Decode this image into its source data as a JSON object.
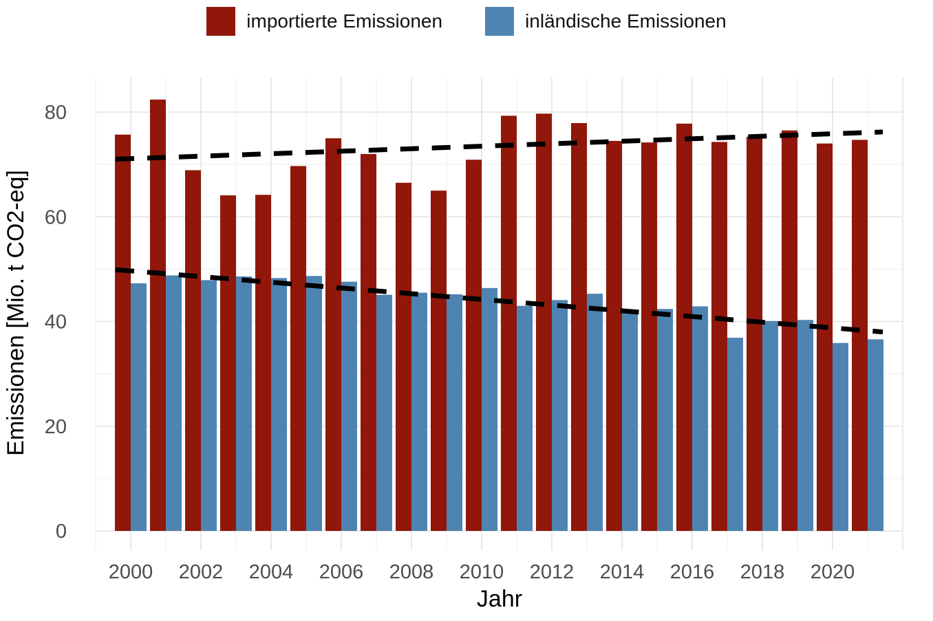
{
  "legend": {
    "items": [
      {
        "label": "importierte Emissionen",
        "color": "#90170A"
      },
      {
        "label": "inländische Emissionen",
        "color": "#4E84B2"
      }
    ]
  },
  "axes": {
    "x_title": "Jahr",
    "y_title": "Emissionen [Mio. t CO2-eq]",
    "y_tick_labels": [
      "0",
      "20",
      "40",
      "60",
      "80"
    ],
    "x_tick_labels": [
      "2000",
      "2002",
      "2004",
      "2006",
      "2008",
      "2010",
      "2012",
      "2014",
      "2016",
      "2018",
      "2020"
    ]
  },
  "chart_data": {
    "type": "bar",
    "title": "",
    "xlabel": "Jahr",
    "ylabel": "Emissionen [Mio. t CO2-eq]",
    "categories": [
      2000,
      2001,
      2002,
      2003,
      2004,
      2005,
      2006,
      2007,
      2008,
      2009,
      2010,
      2011,
      2012,
      2013,
      2014,
      2015,
      2016,
      2017,
      2018,
      2019,
      2020,
      2021
    ],
    "series": [
      {
        "name": "importierte Emissionen",
        "color": "#90170A",
        "values": [
          75.7,
          82.4,
          68.9,
          64.1,
          64.2,
          69.7,
          75.0,
          72.0,
          66.5,
          65.0,
          70.9,
          79.3,
          79.7,
          77.9,
          74.5,
          74.2,
          77.8,
          74.3,
          75.3,
          76.5,
          74.0,
          74.7
        ]
      },
      {
        "name": "inländische Emissionen",
        "color": "#4E84B2",
        "values": [
          47.3,
          48.8,
          47.9,
          48.6,
          48.3,
          48.7,
          47.6,
          45.1,
          45.5,
          45.2,
          46.4,
          43.0,
          44.1,
          45.3,
          41.8,
          42.4,
          42.9,
          36.9,
          40.1,
          40.3,
          35.9,
          36.6
        ]
      }
    ],
    "trendlines": [
      {
        "series": "importierte Emissionen",
        "style": "dashed",
        "color": "#000000",
        "x_start": 2000,
        "y_start": 71.0,
        "x_end": 2021,
        "y_end": 76.2
      },
      {
        "series": "inländische Emissionen",
        "style": "dashed",
        "color": "#000000",
        "x_start": 2000,
        "y_start": 49.9,
        "x_end": 2021,
        "y_end": 38.0
      }
    ],
    "ylim": [
      0,
      87
    ],
    "yticks": [
      0,
      20,
      40,
      60,
      80
    ],
    "yticks_minor": [
      10,
      30,
      50,
      70
    ],
    "xticks": [
      2000,
      2002,
      2004,
      2006,
      2008,
      2010,
      2012,
      2014,
      2016,
      2018,
      2020
    ],
    "grid": true,
    "grid_major_color": "#e2e2e2",
    "grid_minor_color": "#efefef",
    "legend_position": "top"
  }
}
